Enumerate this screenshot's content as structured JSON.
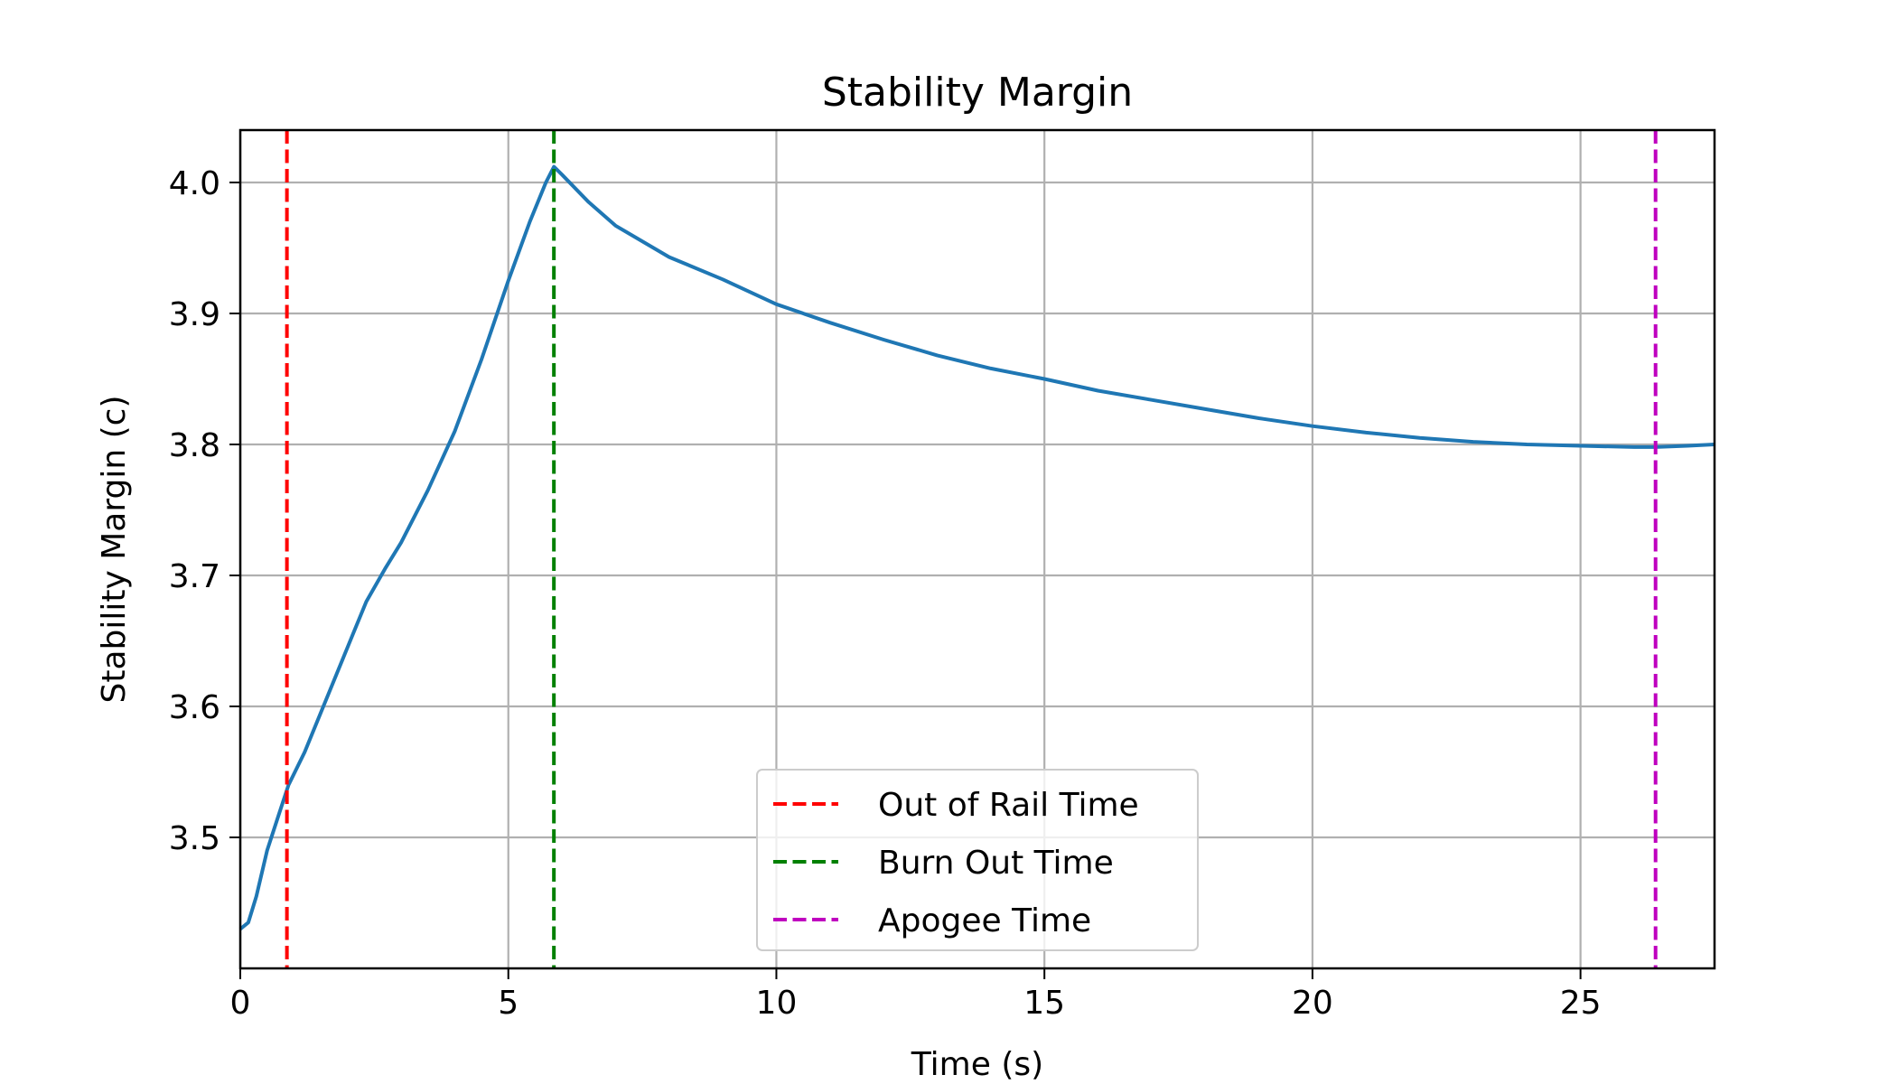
{
  "chart_data": {
    "type": "line",
    "title": "Stability Margin",
    "xlabel": "Time (s)",
    "ylabel": "Stability Margin (c)",
    "xlim": [
      0,
      27.5
    ],
    "ylim": [
      3.4,
      4.04
    ],
    "xticks": [
      0,
      5,
      10,
      15,
      20,
      25
    ],
    "yticks": [
      3.5,
      3.6,
      3.7,
      3.8,
      3.9,
      4.0
    ],
    "xtick_labels": [
      "0",
      "5",
      "10",
      "15",
      "20",
      "25"
    ],
    "ytick_labels": [
      "3.5",
      "3.6",
      "3.7",
      "3.8",
      "3.9",
      "4.0"
    ],
    "grid": true,
    "legend_position": "lower-center",
    "series": [
      {
        "color": "#1f77b4",
        "x": [
          0,
          0.15,
          0.3,
          0.5,
          0.7,
          0.9,
          1.2,
          1.5,
          1.8,
          2.1,
          2.35,
          2.7,
          3.0,
          3.5,
          4.0,
          4.5,
          5.0,
          5.4,
          5.7,
          5.85,
          6.0,
          6.5,
          7.0,
          8.0,
          9.0,
          10.0,
          11.0,
          12.0,
          13.0,
          14.0,
          15.0,
          16.0,
          17.0,
          18.0,
          19.0,
          20.0,
          21.0,
          22.0,
          23.0,
          24.0,
          25.0,
          26.0,
          26.4,
          27.0,
          27.5
        ],
        "y": [
          3.43,
          3.435,
          3.455,
          3.49,
          3.515,
          3.54,
          3.565,
          3.595,
          3.625,
          3.655,
          3.68,
          3.705,
          3.725,
          3.765,
          3.81,
          3.865,
          3.925,
          3.97,
          4.0,
          4.012,
          4.006,
          3.985,
          3.967,
          3.943,
          3.926,
          3.907,
          3.893,
          3.88,
          3.868,
          3.858,
          3.85,
          3.841,
          3.834,
          3.827,
          3.82,
          3.814,
          3.809,
          3.805,
          3.802,
          3.8,
          3.799,
          3.798,
          3.798,
          3.799,
          3.8
        ]
      }
    ],
    "vlines": [
      {
        "name": "Out of Rail Time",
        "x": 0.87,
        "color": "#ff0000"
      },
      {
        "name": "Burn Out Time",
        "x": 5.85,
        "color": "#008000"
      },
      {
        "name": "Apogee Time",
        "x": 26.4,
        "color": "#bf00bf"
      }
    ]
  }
}
